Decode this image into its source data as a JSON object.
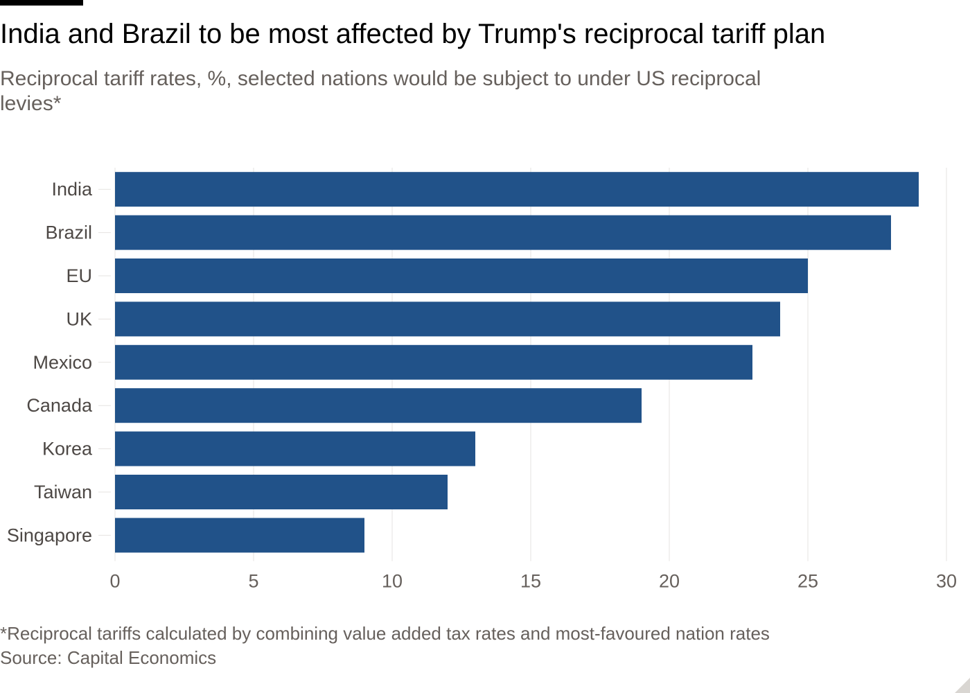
{
  "header": {
    "title": "India and Brazil to be most affected by Trump's reciprocal tariff plan",
    "subtitle": "Reciprocal tariff rates, %, selected nations would be subject to under US reciprocal levies*"
  },
  "footer": {
    "note": "*Reciprocal tariffs calculated by combining value added tax rates and most-favoured nation rates",
    "source": "Source: Capital Economics"
  },
  "colors": {
    "bar": "#215289",
    "grid": "#e6e3e0",
    "text": "#66605c"
  },
  "chart_data": {
    "type": "bar",
    "orientation": "horizontal",
    "title": "India and Brazil to be most affected by Trump's reciprocal tariff plan",
    "xlabel": "",
    "ylabel": "",
    "categories": [
      "India",
      "Brazil",
      "EU",
      "UK",
      "Mexico",
      "Canada",
      "Korea",
      "Taiwan",
      "Singapore"
    ],
    "values": [
      29,
      28,
      25,
      24,
      23,
      19,
      13,
      12,
      9
    ],
    "xlim": [
      0,
      30
    ],
    "xticks": [
      0,
      5,
      10,
      15,
      20,
      25,
      30
    ],
    "grid": true
  }
}
